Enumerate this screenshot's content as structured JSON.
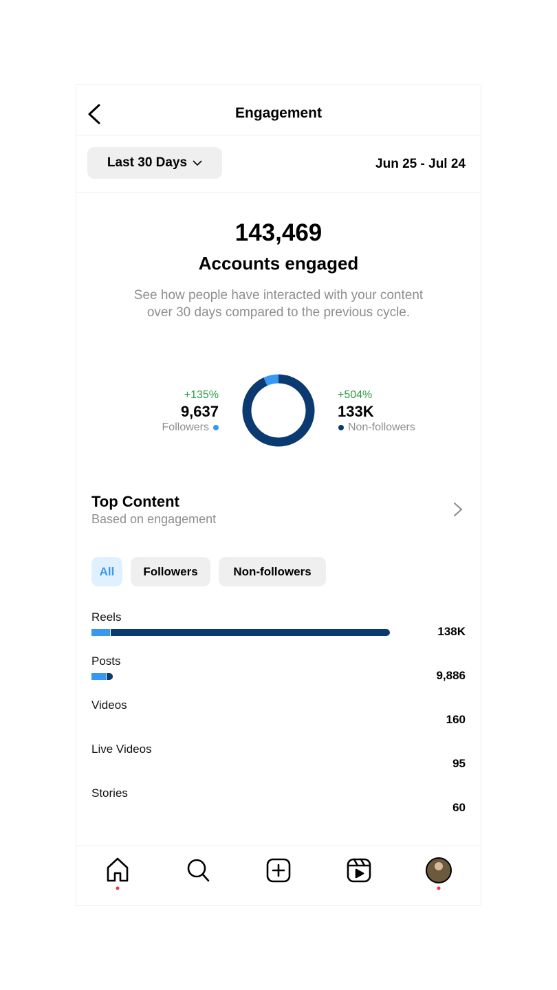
{
  "header": {
    "title": "Engagement"
  },
  "filter": {
    "period": "Last 30 Days",
    "date_range": "Jun 25 - Jul 24"
  },
  "summary": {
    "total": "143,469",
    "label": "Accounts engaged",
    "description_line1": "See how people have interacted with your content",
    "description_line2": "over 30 days compared to the previous cycle."
  },
  "audience": {
    "followers": {
      "change": "+135%",
      "value": 9637,
      "value_label": "9,637",
      "label": "Followers",
      "color": "#3897f0"
    },
    "non_followers": {
      "change": "+504%",
      "value": 133000,
      "value_label": "133K",
      "label": "Non-followers",
      "color": "#0b3a70"
    }
  },
  "top_content": {
    "title": "Top Content",
    "subtitle": "Based on engagement",
    "tabs": [
      "All",
      "Followers",
      "Non-followers"
    ],
    "rows": [
      {
        "label": "Reels",
        "value": 138000,
        "value_label": "138K",
        "followers": 8600,
        "non_followers": 129400
      },
      {
        "label": "Posts",
        "value": 9886,
        "value_label": "9,886",
        "followers": 6700,
        "non_followers": 3186
      },
      {
        "label": "Videos",
        "value": 160
      },
      {
        "label": "Live Videos",
        "value": 95
      },
      {
        "label": "Stories",
        "value": 60
      }
    ]
  }
}
